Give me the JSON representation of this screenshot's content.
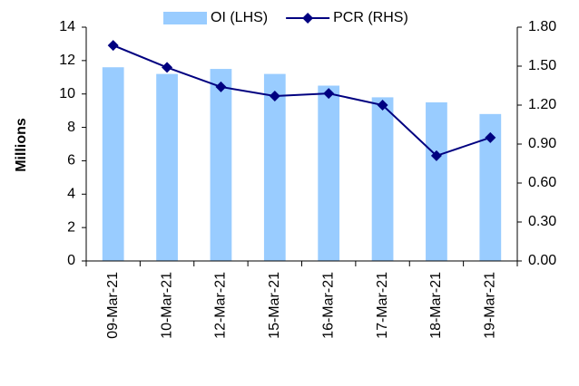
{
  "chart_data": {
    "type": "bar",
    "y_label": "Millions",
    "categories": [
      "09-Mar-21",
      "10-Mar-21",
      "12-Mar-21",
      "15-Mar-21",
      "16-Mar-21",
      "17-Mar-21",
      "18-Mar-21",
      "19-Mar-21"
    ],
    "series": [
      {
        "name": "OI (LHS)",
        "type": "bar",
        "color": "#99ccff",
        "values": [
          11.6,
          11.2,
          11.5,
          11.2,
          10.5,
          9.8,
          9.5,
          8.8
        ]
      },
      {
        "name": "PCR (RHS)",
        "type": "line",
        "axis": "y2",
        "color": "#000080",
        "values": [
          1.66,
          1.49,
          1.34,
          1.27,
          1.29,
          1.2,
          0.81,
          0.95
        ]
      }
    ],
    "ylim": [
      0,
      14
    ],
    "yticks": [
      0,
      2,
      4,
      6,
      8,
      10,
      12,
      14
    ],
    "y2lim": [
      0,
      1.8
    ],
    "y2ticks": [
      {
        "value": 0,
        "label": "0.00"
      },
      {
        "value": 0.3,
        "label": "0.30"
      },
      {
        "value": 0.6,
        "label": "0.60"
      },
      {
        "value": 0.9,
        "label": "0.90"
      },
      {
        "value": 1.2,
        "label": "1.20"
      },
      {
        "value": 1.5,
        "label": "1.50"
      },
      {
        "value": 1.8,
        "label": "1.80"
      }
    ],
    "grid": false,
    "legend": "top"
  }
}
